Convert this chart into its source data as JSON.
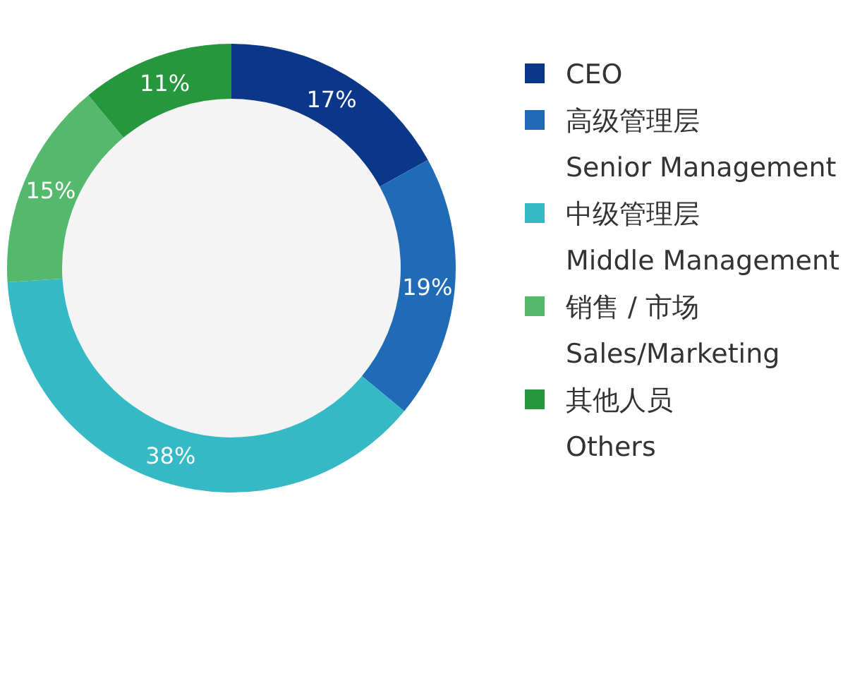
{
  "chart_data": {
    "type": "donut",
    "categories": [
      "CEO",
      "高级管理层\nSenior Management",
      "中级管理层\nMiddle Management",
      "销售 / 市场\nSales/Marketing",
      "其他人员\nOthers"
    ],
    "values": [
      17,
      19,
      38,
      15,
      11
    ],
    "value_labels": [
      "17%",
      "19%",
      "38%",
      "15%",
      "11%"
    ],
    "colors": [
      "#0b3788",
      "#1f6bb6",
      "#34b9c5",
      "#55b96d",
      "#27973e"
    ],
    "legend": "right"
  }
}
